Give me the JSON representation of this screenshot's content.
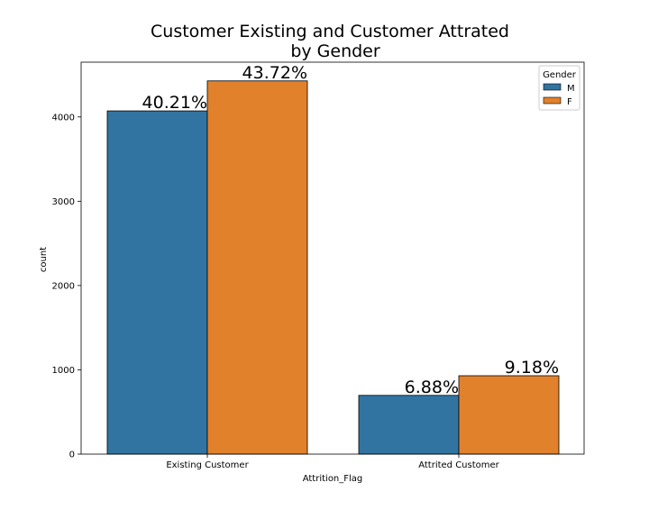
{
  "chart_data": {
    "type": "bar",
    "title_lines": [
      "Customer Existing and Customer Attrated",
      "by Gender"
    ],
    "xlabel": "Attrition_Flag",
    "ylabel": "count",
    "categories": [
      "Existing Customer",
      "Attrited Customer"
    ],
    "series": [
      {
        "name": "M",
        "color": "#3274a1",
        "values": [
          4072,
          697
        ],
        "labels": [
          "40.21%",
          "6.88%"
        ]
      },
      {
        "name": "F",
        "color": "#e1812c",
        "values": [
          4428,
          930
        ],
        "labels": [
          "43.72%",
          "9.18%"
        ]
      }
    ],
    "ylim": [
      0,
      4650
    ],
    "yticks": [
      0,
      1000,
      2000,
      3000,
      4000
    ],
    "legend": {
      "title": "Gender",
      "placement": "top-right"
    },
    "grid": false
  }
}
